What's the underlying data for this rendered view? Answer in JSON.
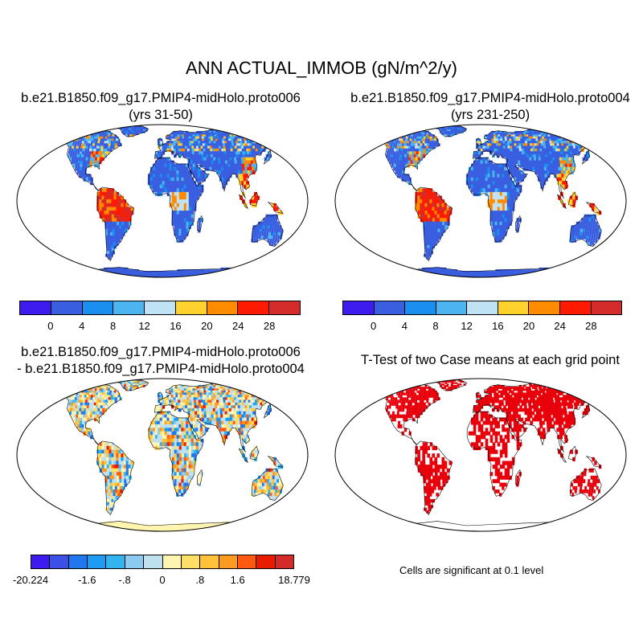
{
  "figure": {
    "title": "ANN ACTUAL_IMMOB (gN/m^2/y)"
  },
  "panels": {
    "case1": {
      "title_line1": "b.e21.B1850.f09_g17.PMIP4-midHolo.proto006",
      "title_line2": "(yrs 31-50)"
    },
    "case2": {
      "title_line1": "b.e21.B1850.f09_g17.PMIP4-midHolo.proto004",
      "title_line2": "(yrs 231-250)"
    },
    "diff": {
      "title_line1": "b.e21.B1850.f09_g17.PMIP4-midHolo.proto006",
      "title_line2": "- b.e21.B1850.f09_g17.PMIP4-midHolo.proto004"
    },
    "ttest": {
      "title_line1": "T-Test of two Case means at each grid point",
      "note": "Cells are significant at 0.1 level",
      "significant_color": "#e8000b"
    }
  },
  "colorbars": {
    "abs": {
      "colors": [
        "#3e1cf0",
        "#3a5ee0",
        "#1a8ff0",
        "#4cb4f0",
        "#bfe2f5",
        "#ffd22e",
        "#ff8c00",
        "#ff1a00",
        "#d62b2b"
      ],
      "labels": [
        "0",
        "4",
        "8",
        "12",
        "16",
        "20",
        "24",
        "28"
      ]
    },
    "diff": {
      "colors": [
        "#3e1cf0",
        "#3c50e6",
        "#2276ee",
        "#1e9cf5",
        "#33b4f0",
        "#8ccaf0",
        "#bfe0ee",
        "#fff5b0",
        "#ffe066",
        "#ffc23a",
        "#ff9a20",
        "#ff5a10",
        "#e81c00",
        "#d42a2a"
      ],
      "labels": [
        "-20.224",
        "-1.6",
        "-.8",
        "0",
        ".8",
        "1.6",
        "18.779"
      ]
    }
  }
}
